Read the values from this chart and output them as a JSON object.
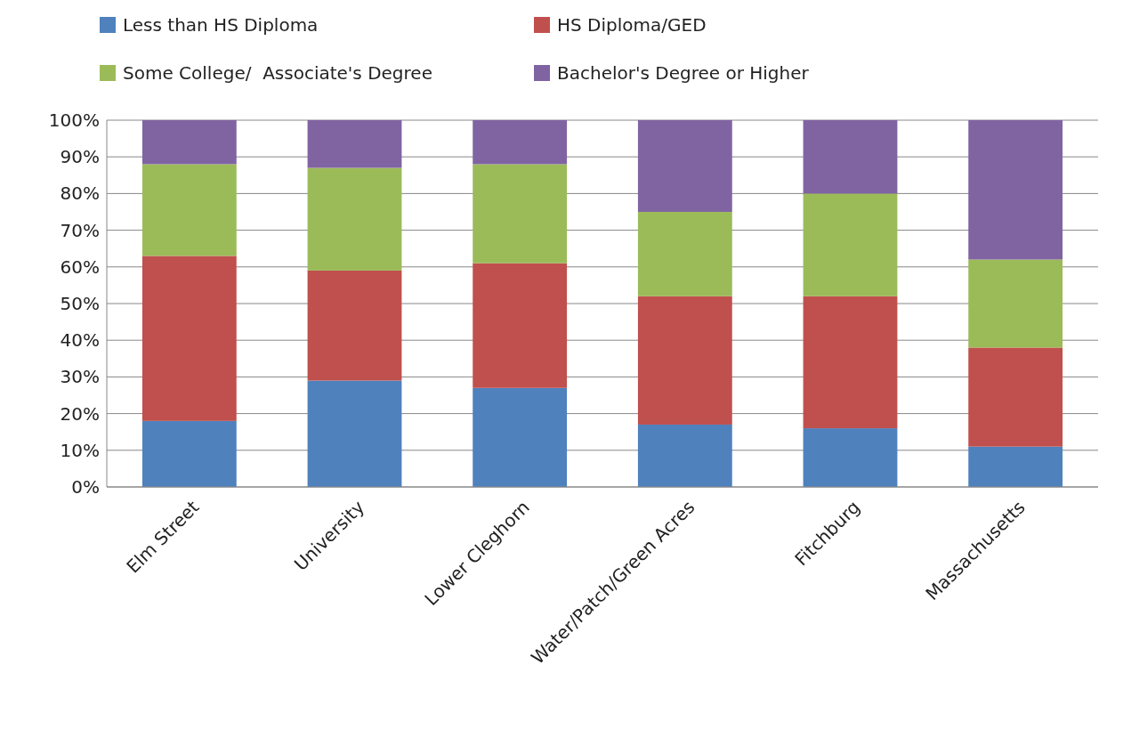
{
  "chart_data": {
    "type": "bar",
    "stacked": true,
    "categories": [
      "Elm Street",
      "University",
      "Lower Cleghorn",
      "Water/Patch/Green Acres",
      "Fitchburg",
      "Massachusetts"
    ],
    "series": [
      {
        "name": "Less than HS Diploma",
        "color": "#4f81bd",
        "values": [
          18,
          29,
          27,
          17,
          16,
          11
        ]
      },
      {
        "name": "HS Diploma/GED",
        "color": "#c0504d",
        "values": [
          45,
          30,
          34,
          35,
          36,
          27
        ]
      },
      {
        "name": "Some College/  Associate's Degree",
        "color": "#9bbb59",
        "values": [
          25,
          28,
          27,
          23,
          28,
          24
        ]
      },
      {
        "name": "Bachelor's Degree or Higher",
        "color": "#8064a2",
        "values": [
          12,
          13,
          12,
          25,
          20,
          38
        ]
      }
    ],
    "ylim": [
      0,
      100
    ],
    "yticks": [
      {
        "value": 0,
        "label": "0%"
      },
      {
        "value": 10,
        "label": "10%"
      },
      {
        "value": 20,
        "label": "20%"
      },
      {
        "value": 30,
        "label": "30%"
      },
      {
        "value": 40,
        "label": "40%"
      },
      {
        "value": 50,
        "label": "50%"
      },
      {
        "value": 60,
        "label": "60%"
      },
      {
        "value": 70,
        "label": "70%"
      },
      {
        "value": 80,
        "label": "80%"
      },
      {
        "value": 90,
        "label": "90%"
      },
      {
        "value": 100,
        "label": "100%"
      }
    ],
    "grid": "y",
    "legend": "top"
  }
}
